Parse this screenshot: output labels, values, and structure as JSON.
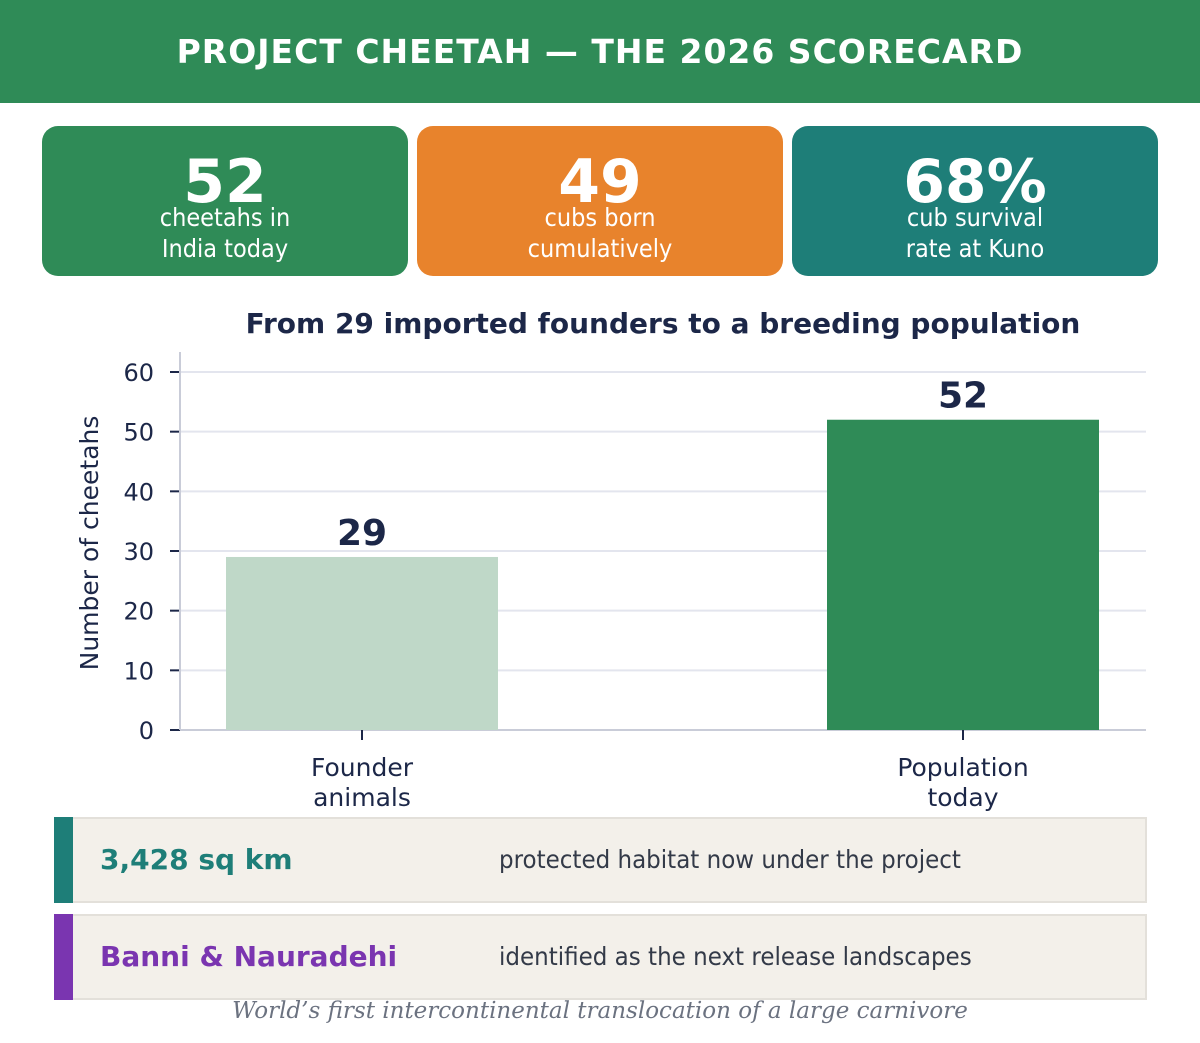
{
  "header": {
    "title": "PROJECT CHEETAH — THE 2026 SCORECARD"
  },
  "stats": [
    {
      "value": "52",
      "label_line1": "cheetahs in",
      "label_line2": "India today",
      "color": "#2f8b57"
    },
    {
      "value": "49",
      "label_line1": "cubs born",
      "label_line2": "cumulatively",
      "color": "#e8832c"
    },
    {
      "value": "68%",
      "label_line1": "cub survival",
      "label_line2": "rate at Kuno",
      "color": "#1e7e78"
    }
  ],
  "chart_data": {
    "type": "bar",
    "title": "From 29 imported founders to a breeding population",
    "ylabel": "Number of cheetahs",
    "xlabel": "",
    "categories": [
      [
        "Founder",
        "animals"
      ],
      [
        "Population",
        "today"
      ]
    ],
    "values": [
      29,
      52
    ],
    "bar_colors": [
      "#bfd8c8",
      "#2f8b57"
    ],
    "ylim": [
      0,
      60
    ],
    "yticks": [
      0,
      10,
      20,
      30,
      40,
      50,
      60
    ],
    "grid": true,
    "axis_color": "#1c2748",
    "grid_color": "#e3e5ee"
  },
  "facts": [
    {
      "key": "3,428 sq km",
      "desc": "protected habitat now under the project",
      "color": "#1e7e78"
    },
    {
      "key": "Banni & Nauradehi",
      "desc": "identified as the next release landscapes",
      "color": "#7a35b0"
    }
  ],
  "footer": {
    "text": "World’s first intercontinental translocation of a large carnivore"
  }
}
